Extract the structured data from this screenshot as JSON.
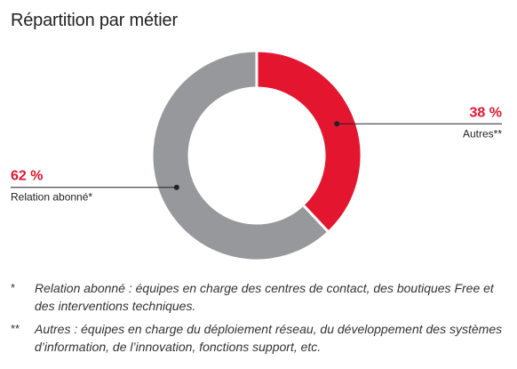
{
  "title": "Répartition par métier",
  "chart_data": {
    "type": "pie",
    "style": "donut",
    "categories": [
      "Autres**",
      "Relation abonné*"
    ],
    "values": [
      38,
      62
    ],
    "value_labels": [
      "38 %",
      "62 %"
    ],
    "colors": [
      "#e4162f",
      "#96989b"
    ]
  },
  "footnotes": [
    {
      "mark": "*",
      "text": "Relation abonné : équipes en charge des centres de contact, des boutiques Free et des interventions techniques."
    },
    {
      "mark": "**",
      "text": "Autres : équipes en charge du déploiement réseau, du développement des systèmes d’information, de l’innovation, fonctions support, etc."
    }
  ]
}
